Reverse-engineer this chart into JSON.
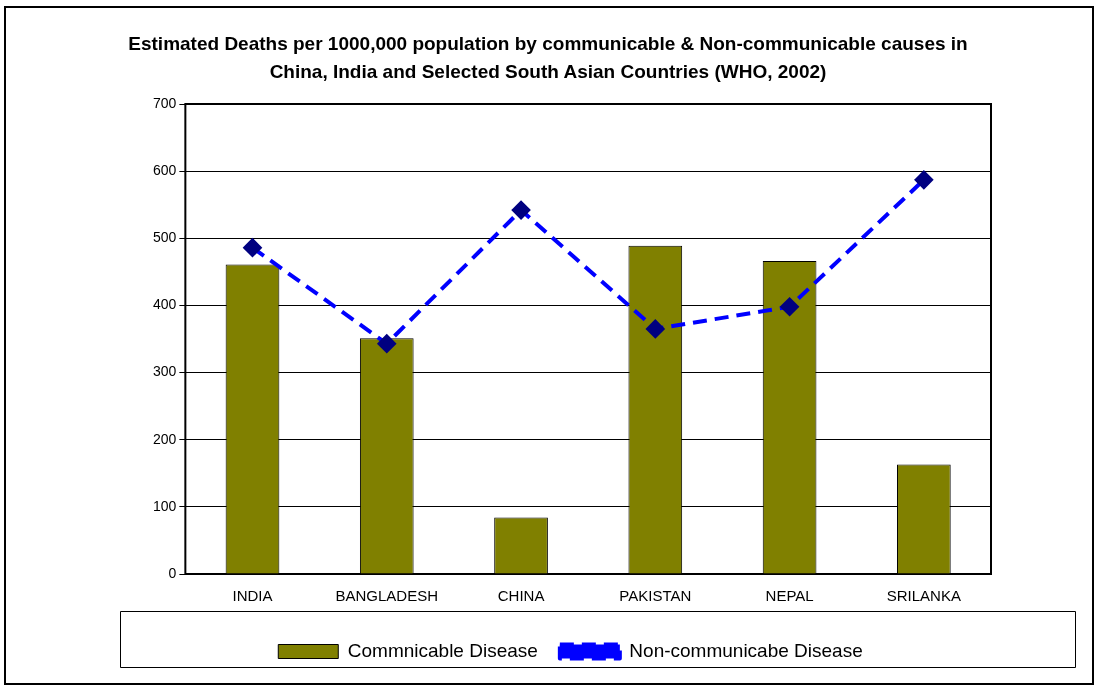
{
  "chart_data": {
    "type": "bar",
    "title": "Estimated Deaths per 1000,000 population by communicable & Non-communicable causes in China, India and Selected South Asian Countries (WHO, 2002)",
    "categories": [
      "INDIA",
      "BANGLADESH",
      "CHINA",
      "PAKISTAN",
      "NEPAL",
      "SRILANKA"
    ],
    "series": [
      {
        "name": "Commnicable Disease",
        "color": "#808000",
        "values": [
          461,
          351,
          84,
          489,
          466,
          163
        ]
      },
      {
        "name": "Non-communicabe Disease",
        "type": "line",
        "color": "#0000ff",
        "values": [
          486,
          343,
          542,
          365,
          398,
          587
        ],
        "marker": "diamond",
        "line_style": "dashed"
      }
    ],
    "ylim": [
      0,
      700
    ],
    "yticks": [
      0,
      100,
      200,
      300,
      400,
      500,
      600,
      700
    ],
    "grid": "y",
    "legend": "bottom"
  }
}
